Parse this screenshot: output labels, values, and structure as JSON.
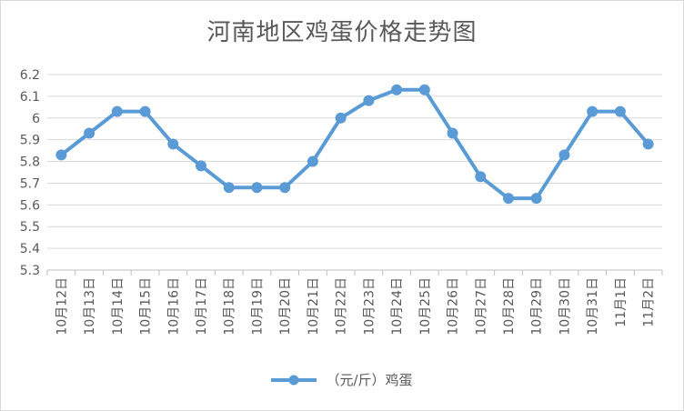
{
  "chart_data": {
    "type": "line",
    "title": "河南地区鸡蛋价格走势图",
    "categories": [
      "10月12日",
      "10月13日",
      "10月14日",
      "10月15日",
      "10月16日",
      "10月17日",
      "10月18日",
      "10月19日",
      "10月20日",
      "10月21日",
      "10月22日",
      "10月23日",
      "10月24日",
      "10月25日",
      "10月26日",
      "10月27日",
      "10月28日",
      "10月29日",
      "10月30日",
      "10月31日",
      "11月1日",
      "11月2日"
    ],
    "series": [
      {
        "name": "（元/斤）鸡蛋",
        "color": "#5B9BD5",
        "values": [
          5.83,
          5.93,
          6.03,
          6.03,
          5.88,
          5.78,
          5.68,
          5.68,
          5.68,
          5.8,
          6.0,
          6.08,
          6.13,
          6.13,
          5.93,
          5.73,
          5.63,
          5.63,
          5.83,
          6.03,
          6.03,
          5.88
        ]
      }
    ],
    "yticks": [
      "5.3",
      "5.4",
      "5.5",
      "5.6",
      "5.7",
      "5.8",
      "5.9",
      "6",
      "6.1",
      "6.2"
    ],
    "ylim": [
      5.3,
      6.2
    ],
    "grid": true,
    "legend_position": "bottom"
  }
}
